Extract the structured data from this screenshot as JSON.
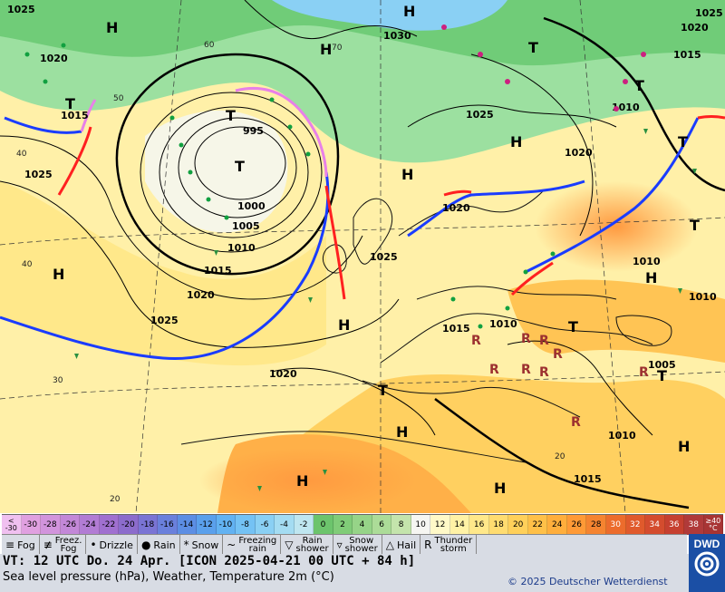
{
  "map": {
    "pressure_systems": [
      {
        "type": "H",
        "label": "H"
      },
      {
        "type": "H",
        "label": "H"
      },
      {
        "type": "H",
        "label": "H"
      },
      {
        "type": "H",
        "label": "H"
      },
      {
        "type": "H",
        "label": "H"
      },
      {
        "type": "H",
        "label": "H"
      },
      {
        "type": "H",
        "label": "H"
      },
      {
        "type": "H",
        "label": "H"
      },
      {
        "type": "H",
        "label": "H"
      },
      {
        "type": "H",
        "label": "H"
      },
      {
        "type": "H",
        "label": "H"
      },
      {
        "type": "H",
        "label": "H"
      },
      {
        "type": "T",
        "label": "T"
      },
      {
        "type": "T",
        "label": "T"
      },
      {
        "type": "T",
        "label": "T"
      },
      {
        "type": "T",
        "label": "T"
      },
      {
        "type": "T",
        "label": "T"
      },
      {
        "type": "T",
        "label": "T"
      },
      {
        "type": "T",
        "label": "T"
      },
      {
        "type": "T",
        "label": "T"
      },
      {
        "type": "T",
        "label": "T"
      },
      {
        "type": "T",
        "label": "T"
      }
    ],
    "isobar_labels": [
      "1025",
      "1020",
      "1015",
      "1025",
      "995",
      "1000",
      "1005",
      "1010",
      "1015",
      "1020",
      "1025",
      "1020",
      "1030",
      "1025",
      "1020",
      "1015",
      "1010",
      "1020",
      "1025",
      "1015",
      "1010",
      "1005",
      "1010",
      "1015",
      "1010",
      "1020",
      "1025",
      "1010"
    ],
    "temperature_labels": [
      "60",
      "50",
      "40",
      "40",
      "30",
      "20",
      "70",
      "20"
    ]
  },
  "temperature_scale": {
    "unit_label": "°C",
    "low_label": "<\n-30",
    "high_label": "≥40\n°C",
    "steps": [
      "-30",
      "-28",
      "-26",
      "-24",
      "-22",
      "-20",
      "-18",
      "-16",
      "-14",
      "-12",
      "-10",
      "-8",
      "-6",
      "-4",
      "-2",
      "0",
      "2",
      "4",
      "6",
      "8",
      "10",
      "12",
      "14",
      "16",
      "18",
      "20",
      "22",
      "24",
      "26",
      "28",
      "30",
      "32",
      "34",
      "36",
      "38"
    ],
    "colors": [
      "#e0a0e0",
      "#d294dc",
      "#c388d8",
      "#b27cd4",
      "#a070d0",
      "#8c6ccc",
      "#7a74d4",
      "#6a80dc",
      "#5c8ee4",
      "#5aa0ec",
      "#62b2f2",
      "#74c2f4",
      "#8ad0f4",
      "#a4dcf2",
      "#bfe6f0",
      "#6cc46c",
      "#80cc78",
      "#96d488",
      "#acdc98",
      "#c4e4ac",
      "#f6f6f2",
      "#fff9c8",
      "#fff2a6",
      "#ffe88a",
      "#ffdc70",
      "#ffd05a",
      "#ffc048",
      "#ffae3c",
      "#ff9a36",
      "#f58430",
      "#ec6c2c",
      "#e05a2c",
      "#d44c2e",
      "#c64030",
      "#b03a3a"
    ]
  },
  "legend": [
    {
      "icon": "fog-icon",
      "label": "Fog"
    },
    {
      "icon": "freezing-fog-icon",
      "label": "Freez.\nFog"
    },
    {
      "icon": "drizzle-icon",
      "label": "Drizzle"
    },
    {
      "icon": "rain-icon",
      "label": "Rain"
    },
    {
      "icon": "snow-icon",
      "label": "Snow"
    },
    {
      "icon": "freezing-rain-icon",
      "label": "Freezing\nrain"
    },
    {
      "icon": "rain-shower-icon",
      "label": "Rain\nshower"
    },
    {
      "icon": "snow-shower-icon",
      "label": "Snow\nshower"
    },
    {
      "icon": "hail-icon",
      "label": "Hail"
    },
    {
      "icon": "thunderstorm-icon",
      "label": "Thunder\nstorm"
    }
  ],
  "footer": {
    "valid_time": "VT: 12 UTC Do.  24 Apr. [ICON 2025-04-21  00 UTC + 84 h]",
    "subtitle": "Sea level pressure (hPa), Weather, Temperature 2m (°C)",
    "copyright": "© 2025 Deutscher Wetterdienst",
    "logo_text": "DWD"
  },
  "colors": {
    "cold_front": "#1a3cff",
    "warm_front": "#ff2020",
    "occluded_front": "#e880e8",
    "isobar": "#000000",
    "background_ocean_warm": "#fff4b0",
    "background_land_warm": "#ffb070"
  }
}
